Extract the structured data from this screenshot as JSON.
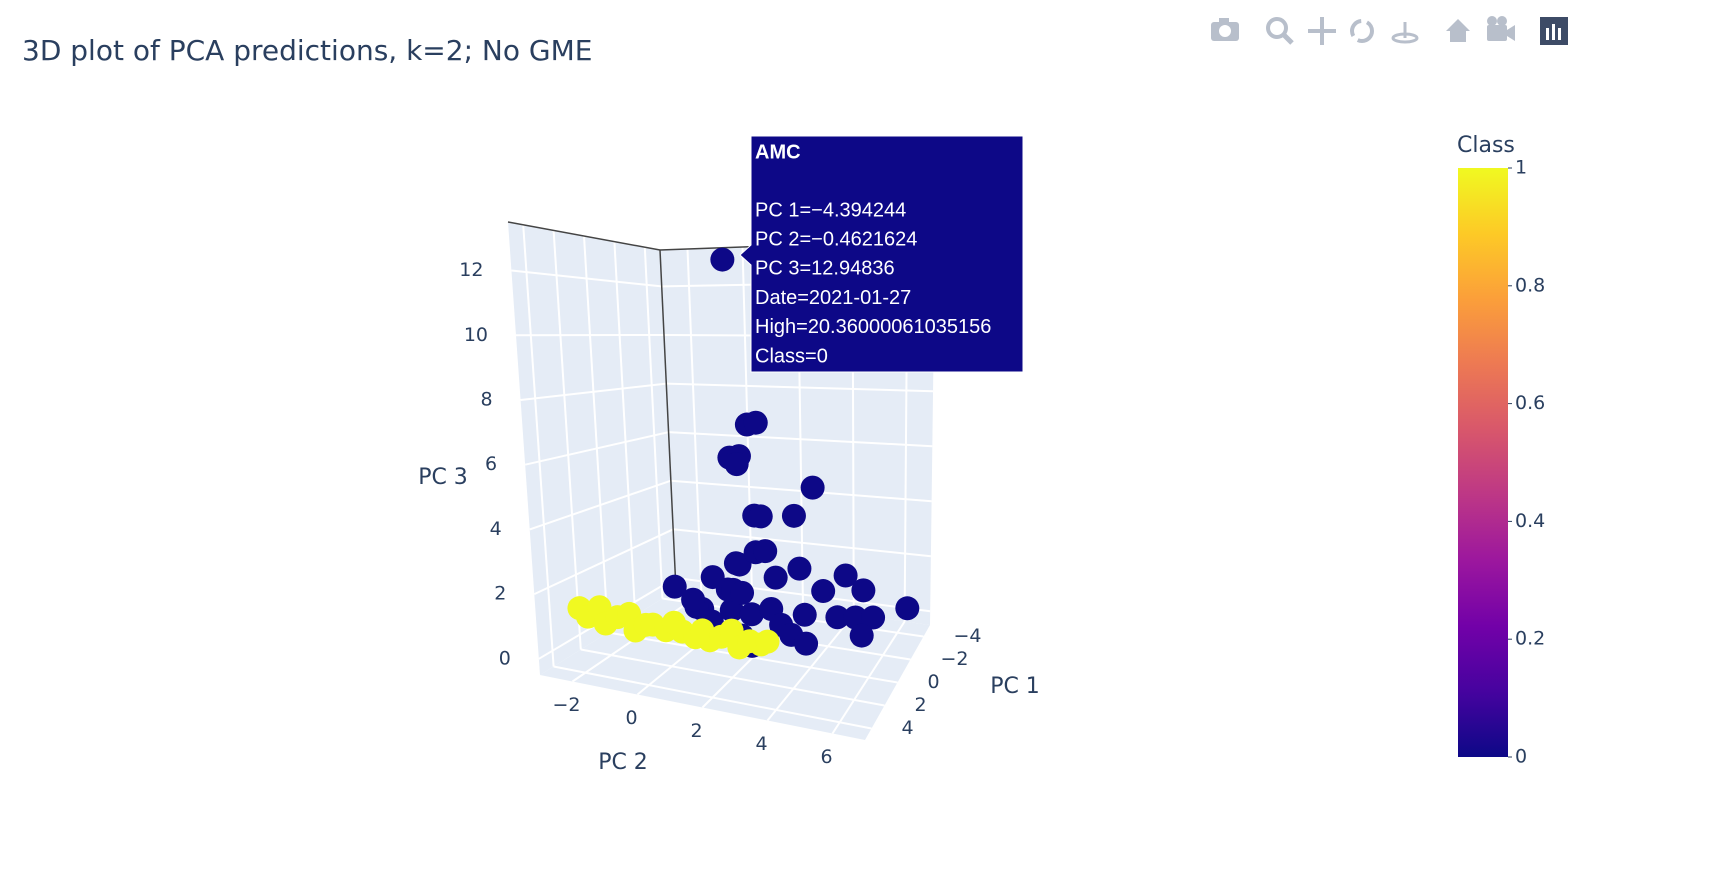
{
  "chart_data": {
    "type": "scatter3d",
    "title": "3D plot of PCA predictions, k=2; No GME",
    "x_label": "PC 1",
    "y_label": "PC 2",
    "z_label": "PC 3",
    "xlim": [
      -5,
      5
    ],
    "ylim": [
      -3,
      7
    ],
    "zlim": [
      -0.5,
      13.5
    ],
    "xticks": [
      {
        "value": -4,
        "label": "−4"
      },
      {
        "value": -2,
        "label": "−2"
      },
      0,
      2,
      4
    ],
    "yticks": [
      {
        "value": -2,
        "label": "−2"
      },
      0,
      2,
      4,
      6
    ],
    "zticks": [
      0,
      2,
      4,
      6,
      8,
      10,
      12
    ],
    "x": [
      -4.394244,
      -0.5,
      -0.2,
      -1,
      -0.8,
      -0.3,
      -2,
      -1,
      -0.5,
      -1.5,
      0,
      0.5,
      -0.5,
      0,
      1.5,
      -0.5,
      0,
      -1,
      -2,
      -1.5,
      -2.5,
      -3,
      -3.5,
      0.5,
      1,
      0.5,
      0,
      -0.5,
      0,
      -1,
      0.5,
      -1.5,
      -2,
      -2.5,
      1,
      1.5,
      0.5,
      -1,
      -0.5,
      1,
      0,
      -1,
      3,
      3.1,
      2.9,
      3.2,
      3,
      2.8,
      3.1,
      3,
      3.2,
      2.9,
      3,
      3.1,
      2.8,
      3,
      3.2,
      3,
      2.9,
      3.1,
      3,
      2.8,
      3.1
    ],
    "y": [
      -0.4621624,
      1.8,
      2.2,
      1.0,
      1.4,
      1.5,
      3.5,
      1.8,
      2.2,
      3.0,
      1.5,
      1.8,
      2.0,
      2.5,
      0,
      0.5,
      1.2,
      2.5,
      3,
      4,
      4.5,
      5,
      6.5,
      0.5,
      1,
      1.5,
      2,
      2.5,
      3,
      3.5,
      3.5,
      4.5,
      5,
      5.5,
      2,
      2.5,
      4,
      1,
      1.5,
      0.5,
      0,
      5.5,
      -2.5,
      -2.2,
      -1.9,
      -1.6,
      -1.3,
      -1.0,
      -0.7,
      -0.4,
      -0.1,
      0.2,
      0.5,
      0.8,
      1.1,
      1.4,
      1.7,
      2.0,
      2.3,
      2.6,
      2.9,
      3.2,
      3.5
    ],
    "z": [
      12.94836,
      7.0,
      7.1,
      5.8,
      5.9,
      5.7,
      4.8,
      3.9,
      4.0,
      3.9,
      2.5,
      2.6,
      2.8,
      3.0,
      1.9,
      1.8,
      1.6,
      1.9,
      2.0,
      1.5,
      1.8,
      1.2,
      0.6,
      1.0,
      0.8,
      1.1,
      0.9,
      1.0,
      0.7,
      0.8,
      0.6,
      0.7,
      0.6,
      0.5,
      0.5,
      0.4,
      0.4,
      1.3,
      1.4,
      1.2,
      1.1,
      0.4,
      1.2,
      1.0,
      1.3,
      0.9,
      1.1,
      1.2,
      0.8,
      1.0,
      1.1,
      0.9,
      1.2,
      1.0,
      0.8,
      1.1,
      0.9,
      1.0,
      1.2,
      0.8,
      1.0,
      0.9,
      1.1
    ],
    "class": [
      0,
      0,
      0,
      0,
      0,
      0,
      0,
      0,
      0,
      0,
      0,
      0,
      0,
      0,
      0,
      0,
      0,
      0,
      0,
      0,
      0,
      0,
      0,
      0,
      0,
      0,
      0,
      0,
      0,
      0,
      0,
      0,
      0,
      0,
      0,
      0,
      0,
      0,
      0,
      0,
      0,
      0,
      1,
      1,
      1,
      1,
      1,
      1,
      1,
      1,
      1,
      1,
      1,
      1,
      1,
      1,
      1,
      1,
      1,
      1,
      1,
      1,
      1
    ],
    "colorbar": {
      "title": "Class",
      "ticks": [
        0,
        0.2,
        0.4,
        0.6,
        0.8,
        1
      ],
      "colorscale": [
        "#0d0887",
        "#46039f",
        "#7201a8",
        "#9c179e",
        "#bd3786",
        "#d8576b",
        "#ed7953",
        "#fb9f3a",
        "#fdca26",
        "#f0f921"
      ]
    },
    "hover": {
      "title": "AMC",
      "lines": [
        "PC 1=−4.394244",
        "PC 2=−0.4621624",
        "PC 3=12.94836",
        "Date=2021-01-27",
        "High=20.36000061035156",
        "Class=0"
      ]
    }
  }
}
